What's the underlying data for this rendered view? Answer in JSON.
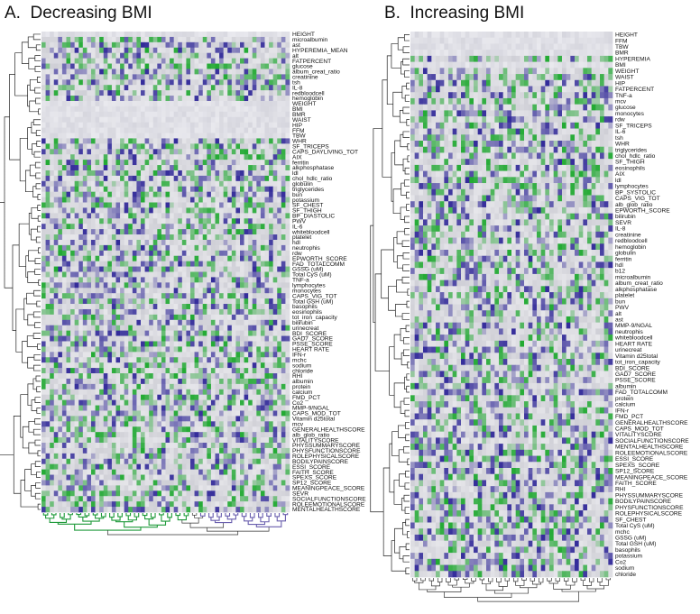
{
  "panel_a": {
    "letter": "A.",
    "title": "Decreasing BMI",
    "highlight": "BMI",
    "labels": [
      "HEIGHT",
      "microalbumin",
      "ast",
      "HYPEREMIA_MEAN",
      "alt",
      "FATPERCENT",
      "glucose",
      "album_creat_ratio",
      "creatinine",
      "tsh",
      "IL-8",
      "redbloodcell",
      "hemoglobin",
      "WEIGHT",
      "BMI",
      "BMR",
      "WAIST",
      "HIP",
      "FFM",
      "TBW",
      "WHR",
      "SF_TRICEPS",
      "CAPS_DAYLIVING_TOT",
      "AIX",
      "ferritin",
      "alkphosphatase",
      "ldl",
      "chol_hdlc_ratio",
      "globulin",
      "triglycerides",
      "bun",
      "potassium",
      "SF_CHEST",
      "SF_THIGH",
      "BP_DIASTOLIC",
      "PWV",
      "IL-6",
      "whitebloodcell",
      "platelet",
      "hdl",
      "neutrophis",
      "rdw",
      "EPWORTH_SCORE",
      "FAD_TOTALCOMM",
      "GSSG (uM)",
      "Total CyS (uM)",
      "TNF-a",
      "lymphocytes",
      "monocytes",
      "CAPS_VIG_TOT",
      "Total GSH (uM)",
      "basophils",
      "eosinophils",
      "tot_iron_capacity",
      "bilirubin",
      "urinecreat",
      "BDI_SCORE",
      "GAD7_SCORE",
      "PSSE_SCORE",
      "HEART RATE",
      "IFN-r",
      "mchc",
      "sodium",
      "chloride",
      "RHI",
      "albumin",
      "protein",
      "calcium",
      "FMD_PCT",
      "Co2",
      "MMP-9/NGAL",
      "CAPS_MOD_TOT",
      "Vitamin d25total",
      "mcv",
      "GENERALHEALTHSCORE",
      "alb_glob_ratio",
      "VITALITYSCORE",
      "PHYSSUMMARYSCORE",
      "PHYSFUNCTIONSCORE",
      "ROLEPHYSICALSCORE",
      "BODILYPAINSCORE",
      "ESSI_SCORE",
      "FAITH_SCORE",
      "SPEXS_SCORE",
      "SP12_SCORE",
      "MEANINGPEACE_SCORE",
      "SEVR",
      "SOCIALFUNCTIONSCORE",
      "ROLEEMOTIONALSCORE",
      "MENTALHEALTHSCORE"
    ]
  },
  "panel_b": {
    "letter": "B.",
    "title": "Increasing BMI",
    "highlight": "BMI",
    "labels": [
      "HEIGHT",
      "FFM",
      "TBW",
      "BMR",
      "HYPEREMIA",
      "BMI",
      "WEIGHT",
      "WAIST",
      "HIP",
      "FATPERCENT",
      "TNF-a",
      "mcv",
      "glucose",
      "monocytes",
      "rdw",
      "SF_TRICEPS",
      "IL-6",
      "tsh",
      "WHR",
      "triglycerides",
      "chol_hdlc_ratio",
      "SF_THIGH",
      "eosinophils",
      "AIX",
      "ldl",
      "lymphocytes",
      "BP_SYSTOLIC",
      "CAPS_VIG_TOT",
      "alb_glob_ratio",
      "EPWORTH_SCORE",
      "bilirubin",
      "SEVR",
      "IL-8",
      "creatinine",
      "redbloodcell",
      "hemoglobin",
      "globulin",
      "ferritin",
      "hdl",
      "b12",
      "microalbumin",
      "album_creat_ratio",
      "alkphosphatase",
      "platelet",
      "bun",
      "PWV",
      "alt",
      "ast",
      "MMP-9/NGAL",
      "neutrophis",
      "whitebloodcell",
      "HEART RATE",
      "urinecreat",
      "Vitamin d25total",
      "tot_iron_capacity",
      "BDI_SCORE",
      "GAD7_SCORE",
      "PSSE_SCORE",
      "albumin",
      "FAD_TOTALCOMM",
      "protein",
      "calcium",
      "IFN-r",
      "FMD_PCT",
      "GENERALHEALTHSCORE",
      "CAPS_MOD_TOT",
      "VITALITYSCORE",
      "SOCIALFUNCTIONSCORE",
      "MENTALHEALTHSCORE",
      "ROLEEMOTIONALSCORE",
      "ESSI_SCORE",
      "SPEXS_SCORE",
      "SP12_SCORE",
      "MEANINGPEACE_SCORE",
      "FAITH_SCORE",
      "RHI",
      "PHYSSUMMARYSCORE",
      "BODILYPAINSCORE",
      "PHYSFUNCTIONSCORE",
      "ROLEPHYSICALSCORE",
      "SF_CHEST",
      "Total CyS (uM)",
      "mchc",
      "GSSG (uM)",
      "Total GSH (uM)",
      "basophils",
      "potassium",
      "Co2",
      "sodium",
      "chloride"
    ]
  },
  "colors": {
    "highlight": "#d42020",
    "high_green": "#22aa33",
    "low_purple": "#332b9a",
    "neutral": "#d9d9de",
    "dendro_green": "#1f9a3a",
    "dendro_purple": "#6a5fae"
  }
}
